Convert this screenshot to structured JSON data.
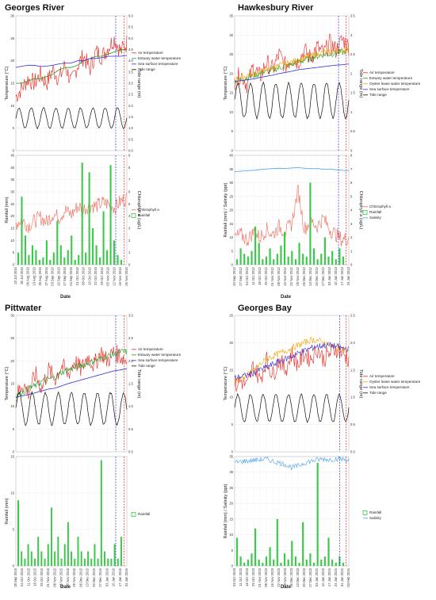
{
  "chart_data": [
    {
      "type": "line",
      "title": "Georges River",
      "x_dates": [
        "23 Jul 2010",
        "30 Jul 2010",
        "06 Aug 2010",
        "13 Aug 2010",
        "20 Aug 2010",
        "27 Aug 2010",
        "03 Sep 2010",
        "10 Sep 2010",
        "17 Sep 2010",
        "24 Sep 2010",
        "01 Oct 2010",
        "08 Oct 2010",
        "15 Oct 2010",
        "22 Oct 2010",
        "29 Oct 2010",
        "05 Nov 2010",
        "12 Nov 2010",
        "19 Nov 2010",
        "26 Nov 2010"
      ],
      "xlabel": "Date",
      "top_panel": {
        "ylabel_left": "Temperature (°C)",
        "ylabel_right": "Tide range (m)",
        "ylim_left": [
          0,
          30
        ],
        "ylim_right": [
          0,
          6
        ],
        "yticks_left": [
          "0",
          "5",
          "10",
          "15",
          "20",
          "25",
          "30"
        ],
        "yticks_right": [
          "0.0",
          "0.5",
          "1.0",
          "1.5",
          "2.0",
          "2.5",
          "3.0",
          "3.5",
          "4.0",
          "4.5",
          "5.0",
          "5.5",
          "6.0"
        ],
        "series": [
          {
            "name": "Air temperature",
            "color": "#e8261e",
            "style": "noisy",
            "values": [
              12,
              14,
              16,
              15,
              17,
              15,
              18,
              16,
              19,
              15,
              19,
              21,
              18,
              22,
              21,
              23,
              25,
              22,
              24
            ]
          },
          {
            "name": "Estuary water temperature",
            "color": "#1d9a27",
            "style": "smooth",
            "values": [
              15,
              15,
              15.5,
              16,
              16,
              16.5,
              17,
              18,
              18.5,
              18.5,
              19,
              20,
              20.5,
              21,
              21,
              21.5,
              22,
              22.5,
              22.5
            ]
          },
          {
            "name": "Sea surface temperature",
            "color": "#2f2fd6",
            "style": "smooth",
            "values": [
              18.5,
              18.8,
              19,
              19,
              18.7,
              18.8,
              19,
              19.3,
              19.5,
              19.5,
              20,
              20,
              20.5,
              20.5,
              20.7,
              21,
              21,
              21,
              21.2
            ]
          },
          {
            "name": "Tide range",
            "color": "#111111",
            "style": "tide",
            "axis": "right",
            "mean": 1.45,
            "amp": 0.45,
            "period_days": 14
          }
        ],
        "legend_position": "right"
      },
      "bottom_panel": {
        "ylabel_left": "Rainfall (mm)",
        "ylabel_right": "Chlorophyll a (ug/L)",
        "ylim_left": [
          0,
          45
        ],
        "ylim_right": [
          0,
          9
        ],
        "yticks_left": [
          "0",
          "5",
          "10",
          "15",
          "20",
          "25",
          "30",
          "35",
          "40",
          "45"
        ],
        "yticks_right": [
          "0",
          "1",
          "2",
          "3",
          "4",
          "5",
          "6",
          "7",
          "8",
          "9"
        ],
        "series": [
          {
            "name": "Chlorophyll a",
            "color": "#ee6a5a",
            "style": "noisy",
            "axis": "right",
            "values": [
              3.4,
              3.7,
              3.2,
              3.6,
              3.9,
              3.5,
              4.2,
              3.9,
              4.5,
              4.1,
              4.8,
              4.6,
              4.9,
              4.8,
              5.1,
              5.0,
              4.7,
              5.2,
              5.5
            ]
          },
          {
            "name": "Rainfall",
            "color": "#3cc84a",
            "style": "bars",
            "values": [
              5,
              28,
              12,
              4,
              8,
              6,
              2,
              3,
              10,
              2,
              5,
              18,
              8,
              3,
              6,
              12,
              2,
              4,
              42,
              5,
              38,
              15,
              8,
              3,
              22,
              6,
              41,
              10,
              4,
              2
            ]
          }
        ],
        "legend_position": "right"
      },
      "markers": {
        "blue_line_frac": 0.9,
        "red_line_frac": 0.975
      }
    },
    {
      "type": "line",
      "title": "Hawkesbury River",
      "x_dates": [
        "20 Sep 2012",
        "27 Sep 2012",
        "04 Oct 2012",
        "11 Oct 2012",
        "18 Oct 2012",
        "25 Oct 2012",
        "01 Nov 2012",
        "08 Nov 2012",
        "15 Nov 2012",
        "22 Nov 2012",
        "29 Nov 2012",
        "06 Dec 2012",
        "13 Dec 2012",
        "20 Dec 2012",
        "27 Dec 2012",
        "03 Jan 2013",
        "10 Jan 2013",
        "17 Jan 2013",
        "24 Jan 2013"
      ],
      "xlabel": "Date",
      "top_panel": {
        "ylabel_left": "Temperature (°C)",
        "ylabel_right": "Tide range (m)",
        "ylim_left": [
          0,
          35
        ],
        "ylim_right": [
          0,
          3.5
        ],
        "yticks_left": [
          "0",
          "5",
          "10",
          "15",
          "20",
          "25",
          "30",
          "35"
        ],
        "yticks_right": [
          "0",
          "0.5",
          "1",
          "1.5",
          "2",
          "2.5",
          "3",
          "3.5"
        ],
        "series": [
          {
            "name": "Air temperature",
            "color": "#e8261e",
            "style": "noisy",
            "values": [
              18,
              20,
              17,
              22,
              19,
              23,
              21,
              25,
              22,
              24,
              23,
              26,
              24,
              27,
              25,
              28,
              26,
              29,
              27
            ]
          },
          {
            "name": "Estuary water temperature",
            "color": "#1d9a27",
            "style": "noisy_small",
            "values": [
              18,
              18.5,
              19,
              19.5,
              20,
              20.5,
              21,
              21.5,
              22,
              22.5,
              23,
              23.5,
              24,
              24.5,
              25,
              25,
              25.5,
              25.5,
              26
            ]
          },
          {
            "name": "Oyster lease water temperature",
            "color": "#f5a100",
            "style": "noisy_small",
            "values": [
              18.5,
              19,
              19.5,
              20,
              20.5,
              21,
              21.5,
              22,
              22.5,
              23,
              23.5,
              24,
              24.5,
              25,
              25.5,
              25.5,
              26,
              26,
              26.5
            ]
          },
          {
            "name": "Sea surface temperature",
            "color": "#2f2fd6",
            "style": "smooth",
            "values": [
              18,
              18.2,
              18.4,
              18.6,
              19,
              19.3,
              19.6,
              20,
              20.3,
              20.6,
              21,
              21.2,
              21.4,
              21.6,
              21.8,
              22,
              22.2,
              22.3,
              22.5
            ]
          },
          {
            "name": "Tide range",
            "color": "#111111",
            "style": "tide",
            "axis": "right",
            "mean": 1.3,
            "amp": 0.45,
            "period_days": 14
          }
        ],
        "legend_position": "right"
      },
      "bottom_panel": {
        "ylabel_left": "Rainfall (mm) / Salinity (ppt)",
        "ylabel_right": "Chlorophyll a (ug/L)",
        "ylim_left": [
          0,
          40
        ],
        "ylim_right": [
          0,
          8
        ],
        "yticks_left": [
          "0",
          "5",
          "10",
          "15",
          "20",
          "25",
          "30",
          "35",
          "40"
        ],
        "yticks_right": [
          "0",
          "1",
          "2",
          "3",
          "4",
          "5",
          "6",
          "7",
          "8"
        ],
        "series": [
          {
            "name": "Chlorophyll a",
            "color": "#ee6a5a",
            "style": "noisy",
            "axis": "right",
            "values": [
              2,
              2.2,
              1.8,
              2.4,
              2.0,
              2.6,
              2.2,
              2.8,
              2.4,
              3.0,
              5.5,
              2.6,
              3.2,
              2.8,
              3.4,
              2.6,
              2.2,
              1.8,
              2.0
            ]
          },
          {
            "name": "Rainfall",
            "color": "#3cc84a",
            "style": "bars",
            "values": [
              2,
              6,
              4,
              3,
              5,
              14,
              8,
              2,
              3,
              6,
              2,
              4,
              7,
              12,
              3,
              5,
              2,
              8,
              4,
              3,
              30,
              6,
              2,
              4,
              10,
              3,
              5,
              2,
              6,
              3
            ]
          },
          {
            "name": "Salinity",
            "color": "#4aa3ef",
            "style": "smooth",
            "values": [
              34,
              34.2,
              34.4,
              34.5,
              34.8,
              35,
              35.2,
              35.3,
              35.2,
              35.4,
              35.5,
              35.3,
              35.1,
              35.2,
              34.9,
              35,
              34.7,
              34.5,
              34.4
            ]
          }
        ],
        "legend_position": "right"
      },
      "markers": {
        "blue_line_frac": 0.91,
        "red_line_frac": 0.975
      }
    },
    {
      "type": "line",
      "title": "Pittwater",
      "x_dates": [
        "28 Sep 2015",
        "04 Oct 2015",
        "11 Oct 2015",
        "18 Oct 2015",
        "25 Oct 2015",
        "01 Nov 2015",
        "08 Nov 2015",
        "15 Nov 2015",
        "22 Nov 2015",
        "29 Nov 2015",
        "06 Dec 2015",
        "13 Dec 2015",
        "20 Dec 2015",
        "27 Dec 2015",
        "03 Jan 2016",
        "10 Jan 2016",
        "17 Jan 2016",
        "24 Jan 2016"
      ],
      "xlabel": "Date",
      "top_panel": {
        "ylabel_left": "Temperature (°C)",
        "ylabel_right": "Tide range (m)",
        "ylim_left": [
          0,
          30
        ],
        "ylim_right": [
          0,
          3
        ],
        "yticks_left": [
          "0",
          "5",
          "10",
          "15",
          "20",
          "25",
          "30"
        ],
        "yticks_right": [
          "0.0",
          "0.5",
          "1.0",
          "1.5",
          "2.0",
          "2.5",
          "3.0"
        ],
        "series": [
          {
            "name": "Air temperature",
            "color": "#e8261e",
            "style": "noisy",
            "values": [
              12,
              15,
              13,
              17,
              14,
              18,
              16,
              19,
              17,
              20,
              18,
              21,
              19,
              22,
              20,
              22,
              21,
              20
            ]
          },
          {
            "name": "Estuary water temperature",
            "color": "#1d9a27",
            "style": "noisy_small",
            "values": [
              12.5,
              13,
              14,
              14.5,
              15.5,
              16,
              16.5,
              17.5,
              18,
              18.5,
              19,
              19.5,
              20,
              20.5,
              21,
              21.5,
              22,
              22
            ]
          },
          {
            "name": "Sea surface temperature",
            "color": "#2f2fd6",
            "style": "smooth",
            "values": [
              12,
              12.3,
              12.6,
              13,
              13.4,
              13.8,
              14,
              14.5,
              15,
              15.4,
              15.8,
              16.2,
              16.6,
              17,
              17.4,
              17.8,
              18,
              18.3
            ]
          },
          {
            "name": "Tide range",
            "color": "#111111",
            "style": "tide",
            "axis": "right",
            "mean": 0.95,
            "amp": 0.35,
            "period_days": 14
          }
        ],
        "legend_position": "right"
      },
      "bottom_panel": {
        "ylabel_left": "Rainfall (mm)",
        "ylim_left": [
          0,
          15
        ],
        "yticks_left": [
          "0",
          "5",
          "10",
          "15"
        ],
        "series": [
          {
            "name": "Rainfall",
            "color": "#3cc84a",
            "style": "bars",
            "values": [
              9,
              2,
              1,
              3,
              2,
              1,
              4,
              2,
              1,
              3,
              8,
              2,
              4,
              1,
              3,
              6,
              2,
              1,
              4,
              2,
              1,
              2,
              1,
              3,
              1,
              14.5,
              2,
              1,
              1,
              3,
              1,
              4
            ]
          }
        ],
        "legend_position": "right"
      },
      "markers": {
        "blue_line_frac": 0.9,
        "red_line_frac": 0.975
      }
    },
    {
      "type": "line",
      "title": "Georges Bay",
      "x_dates": [
        "03 Oct 2023",
        "11 Oct 2023",
        "18 Oct 2023",
        "25 Oct 2023",
        "01 Nov 2023",
        "08 Nov 2023",
        "15 Nov 2023",
        "22 Nov 2023",
        "29 Nov 2023",
        "06 Dec 2023",
        "13 Dec 2023",
        "20 Dec 2023",
        "27 Dec 2023",
        "03 Jan 2024",
        "10 Jan 2024",
        "17 Jan 2024",
        "24 Jan 2024",
        "31 Jan 2024",
        "03 Feb 2024"
      ],
      "xlabel": "Date",
      "top_panel": {
        "ylabel_left": "Temperature (°C)",
        "ylabel_right": "Tide range (m)",
        "ylim_left": [
          0,
          25
        ],
        "ylim_right": [
          0,
          2.5
        ],
        "yticks_left": [
          "0",
          "5",
          "10",
          "15",
          "20",
          "25"
        ],
        "yticks_right": [
          "0.0",
          "0.5",
          "1.0",
          "1.5",
          "2.0",
          "2.5"
        ],
        "series": [
          {
            "name": "Air temperature",
            "color": "#e8261e",
            "style": "noisy",
            "values": [
              12,
              13,
              12,
              16,
              13,
              17,
              14,
              17,
              15,
              18,
              16,
              18,
              17,
              19,
              17,
              18,
              19,
              18,
              17
            ]
          },
          {
            "name": "Oyster lease water temperature",
            "color": "#f5a100",
            "style": "noisy_small",
            "values": [
              13,
              13.5,
              14,
              15,
              16,
              17,
              17.5,
              18,
              18.5,
              19,
              19.5,
              20,
              20.5,
              20.5,
              20,
              19.5,
              19,
              19,
              18.5
            ]
          },
          {
            "name": "Sea surface temperature",
            "color": "#2f2fd6",
            "style": "noisy_small",
            "values": [
              13.5,
              13.8,
              14,
              14.5,
              15,
              15.5,
              16,
              16.5,
              17,
              17.5,
              18,
              18.5,
              19,
              19.3,
              19.5,
              19.5,
              19.3,
              19,
              18.8
            ]
          },
          {
            "name": "Tide range",
            "color": "#111111",
            "style": "tide",
            "axis": "right",
            "mean": 0.8,
            "amp": 0.25,
            "period_days": 14
          }
        ],
        "legend_position": "right"
      },
      "bottom_panel": {
        "ylabel_left": "Rainfall (mm) / Salinity (ppt)",
        "ylim_left": [
          0,
          35
        ],
        "yticks_left": [
          "0",
          "5",
          "10",
          "15",
          "20",
          "25",
          "30",
          "35"
        ],
        "series": [
          {
            "name": "Rainfall",
            "color": "#3cc84a",
            "style": "bars",
            "values": [
              9,
              3,
              1,
              2,
              4,
              12,
              2,
              1,
              3,
              6,
              2,
              15,
              1,
              4,
              2,
              8,
              3,
              1,
              14,
              2,
              4,
              1,
              33,
              2,
              3,
              9,
              2,
              1,
              3,
              1
            ]
          },
          {
            "name": "Salinity",
            "color": "#4aa3ef",
            "style": "noisy_small",
            "values": [
              33,
              33.4,
              33.6,
              33.8,
              34,
              34.2,
              33.5,
              33,
              32.5,
              31.5,
              32,
              33,
              33.5,
              34,
              34.2,
              34,
              34.3,
              34.1,
              34
            ]
          }
        ],
        "legend_position": "right"
      },
      "markers": {
        "blue_line_frac": 0.92,
        "red_line_frac": 0.975
      }
    }
  ]
}
